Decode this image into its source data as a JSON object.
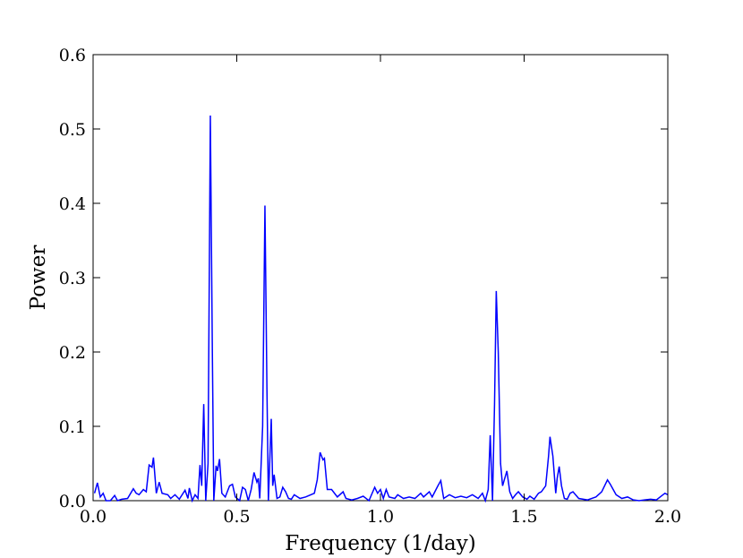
{
  "chart_data": {
    "type": "line",
    "xlabel": "Frequency (1/day)",
    "ylabel": "Power",
    "xlim": [
      0,
      2
    ],
    "ylim": [
      0,
      0.6
    ],
    "xticks": [
      {
        "value": 0,
        "label": "0.0"
      },
      0.5,
      {
        "value": 1,
        "label": "1.0"
      },
      1.5,
      {
        "value": 2,
        "label": "2.0"
      }
    ],
    "yticks": [
      {
        "value": 0,
        "label": "0.0"
      },
      0.1,
      0.2,
      0.3,
      0.4,
      0.5,
      0.6
    ],
    "color": "#0000ff",
    "x": [
      0.005,
      0.015,
      0.025,
      0.035,
      0.045,
      0.06,
      0.075,
      0.085,
      0.1,
      0.12,
      0.14,
      0.15,
      0.16,
      0.175,
      0.185,
      0.195,
      0.205,
      0.21,
      0.22,
      0.23,
      0.24,
      0.26,
      0.27,
      0.285,
      0.3,
      0.32,
      0.33,
      0.335,
      0.345,
      0.355,
      0.365,
      0.372,
      0.378,
      0.385,
      0.392,
      0.4,
      0.408,
      0.415,
      0.42,
      0.428,
      0.433,
      0.44,
      0.448,
      0.46,
      0.475,
      0.485,
      0.495,
      0.51,
      0.52,
      0.53,
      0.54,
      0.55,
      0.56,
      0.57,
      0.575,
      0.58,
      0.59,
      0.598,
      0.605,
      0.61,
      0.62,
      0.625,
      0.63,
      0.64,
      0.65,
      0.66,
      0.67,
      0.68,
      0.69,
      0.7,
      0.72,
      0.74,
      0.77,
      0.78,
      0.79,
      0.8,
      0.805,
      0.815,
      0.83,
      0.85,
      0.87,
      0.88,
      0.9,
      0.92,
      0.94,
      0.96,
      0.98,
      0.99,
      1.0,
      1.01,
      1.02,
      1.03,
      1.05,
      1.06,
      1.08,
      1.1,
      1.12,
      1.14,
      1.15,
      1.17,
      1.18,
      1.2,
      1.21,
      1.22,
      1.24,
      1.26,
      1.28,
      1.3,
      1.32,
      1.34,
      1.355,
      1.365,
      1.375,
      1.382,
      1.39,
      1.397,
      1.403,
      1.41,
      1.418,
      1.425,
      1.44,
      1.45,
      1.46,
      1.47,
      1.48,
      1.495,
      1.51,
      1.52,
      1.535,
      1.55,
      1.56,
      1.575,
      1.585,
      1.59,
      1.6,
      1.61,
      1.615,
      1.622,
      1.63,
      1.64,
      1.65,
      1.66,
      1.67,
      1.69,
      1.72,
      1.75,
      1.77,
      1.79,
      1.8,
      1.82,
      1.84,
      1.86,
      1.88,
      1.9,
      1.92,
      1.94,
      1.96,
      1.98,
      1.99,
      2.0
    ],
    "values": [
      0.01,
      0.024,
      0.005,
      0.01,
      0.0,
      0.0,
      0.007,
      0.0,
      0.002,
      0.003,
      0.016,
      0.01,
      0.008,
      0.015,
      0.012,
      0.048,
      0.045,
      0.058,
      0.01,
      0.025,
      0.01,
      0.008,
      0.003,
      0.008,
      0.002,
      0.014,
      0.003,
      0.017,
      0.0,
      0.008,
      0.003,
      0.048,
      0.02,
      0.13,
      0.0,
      0.05,
      0.518,
      0.2,
      0.0,
      0.047,
      0.04,
      0.056,
      0.01,
      0.005,
      0.02,
      0.022,
      0.005,
      0.0,
      0.018,
      0.015,
      0.0,
      0.015,
      0.038,
      0.025,
      0.03,
      0.003,
      0.1,
      0.397,
      0.15,
      0.0,
      0.11,
      0.02,
      0.035,
      0.003,
      0.005,
      0.018,
      0.012,
      0.003,
      0.002,
      0.008,
      0.003,
      0.005,
      0.01,
      0.028,
      0.065,
      0.055,
      0.057,
      0.015,
      0.015,
      0.005,
      0.012,
      0.003,
      0.001,
      0.003,
      0.006,
      0.0,
      0.018,
      0.01,
      0.015,
      0.003,
      0.015,
      0.005,
      0.003,
      0.008,
      0.003,
      0.005,
      0.003,
      0.01,
      0.005,
      0.012,
      0.005,
      0.02,
      0.027,
      0.003,
      0.008,
      0.004,
      0.006,
      0.004,
      0.008,
      0.003,
      0.01,
      0.0,
      0.015,
      0.088,
      0.0,
      0.13,
      0.282,
      0.2,
      0.05,
      0.02,
      0.04,
      0.012,
      0.003,
      0.008,
      0.012,
      0.005,
      0.002,
      0.006,
      0.002,
      0.01,
      0.012,
      0.02,
      0.06,
      0.086,
      0.06,
      0.01,
      0.03,
      0.046,
      0.02,
      0.003,
      0.002,
      0.01,
      0.012,
      0.003,
      0.001,
      0.005,
      0.012,
      0.028,
      0.022,
      0.008,
      0.003,
      0.005,
      0.001,
      0.0,
      0.001,
      0.002,
      0.001,
      0.007,
      0.01,
      0.008
    ]
  }
}
